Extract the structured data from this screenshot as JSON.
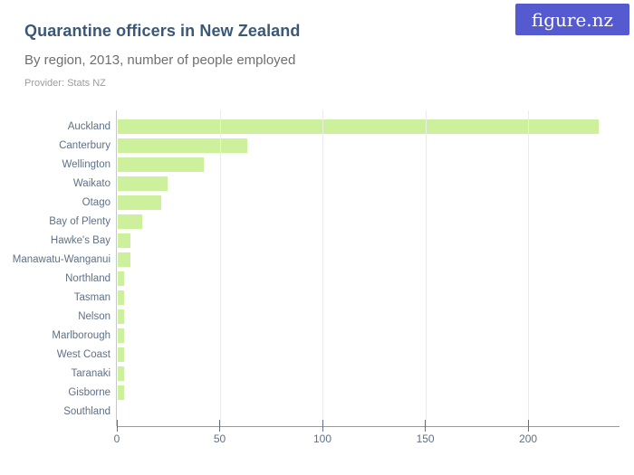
{
  "header": {
    "title": "Quarantine officers in New Zealand",
    "subtitle": "By region, 2013, number of people employed",
    "provider": "Provider: Stats NZ",
    "logo_text": "figure.nz"
  },
  "colors": {
    "bar": "#cdf09c",
    "logo_bg": "#555ad0",
    "title": "#3b5877",
    "subtitle": "#6f6f6f",
    "provider": "#9c9c9c",
    "axis_text": "#5e7186",
    "axis_line": "#9a9a9a",
    "plot_border": "#c4c8cc",
    "gridline": "#ebebeb"
  },
  "chart_data": {
    "type": "bar",
    "orientation": "horizontal",
    "title": "Quarantine officers in New Zealand",
    "subtitle": "By region, 2013, number of people employed",
    "source": "Provider: Stats NZ",
    "categories": [
      "Auckland",
      "Canterbury",
      "Wellington",
      "Waikato",
      "Otago",
      "Bay of Plenty",
      "Hawke's Bay",
      "Manawatu-Wanganui",
      "Northland",
      "Tasman",
      "Nelson",
      "Marlborough",
      "West Coast",
      "Taranaki",
      "Gisborne",
      "Southland"
    ],
    "values": [
      234,
      63,
      42,
      24,
      21,
      12,
      6,
      6,
      3,
      3,
      3,
      3,
      3,
      3,
      3,
      0
    ],
    "xlabel": "",
    "ylabel": "",
    "xticks": [
      0,
      50,
      100,
      150,
      200
    ],
    "xlim": [
      0,
      244
    ],
    "grid": true,
    "legend": false
  }
}
